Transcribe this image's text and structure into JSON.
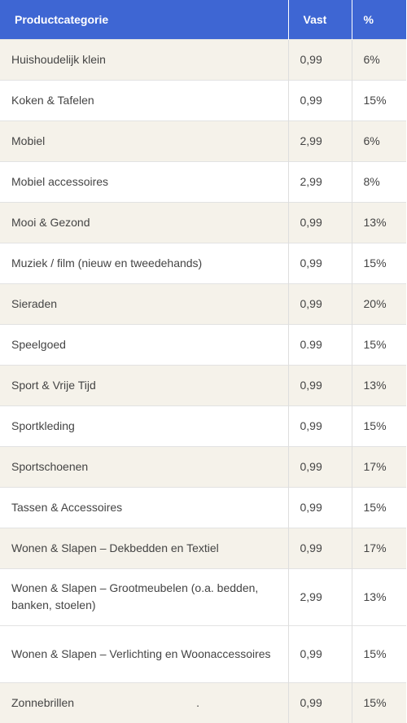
{
  "table": {
    "headers": {
      "category": "Productcategorie",
      "fixed": "Vast",
      "percent": "%"
    },
    "rows": [
      {
        "category": "Huishoudelijk klein",
        "fixed": "0,99",
        "percent": "6%"
      },
      {
        "category": "Koken & Tafelen",
        "fixed": "0,99",
        "percent": "15%"
      },
      {
        "category": "Mobiel",
        "fixed": "2,99",
        "percent": "6%"
      },
      {
        "category": "Mobiel accessoires",
        "fixed": "2,99",
        "percent": "8%"
      },
      {
        "category": "Mooi & Gezond",
        "fixed": "0,99",
        "percent": "13%"
      },
      {
        "category": "Muziek / film (nieuw en tweedehands)",
        "fixed": "0,99",
        "percent": "15%"
      },
      {
        "category": "Sieraden",
        "fixed": "0,99",
        "percent": "20%"
      },
      {
        "category": "Speelgoed",
        "fixed": "0.99",
        "percent": "15%"
      },
      {
        "category": "Sport & Vrije Tijd",
        "fixed": "0,99",
        "percent": "13%"
      },
      {
        "category": "Sportkleding",
        "fixed": "0,99",
        "percent": "15%"
      },
      {
        "category": "Sportschoenen",
        "fixed": "0,99",
        "percent": "17%"
      },
      {
        "category": "Tassen & Accessoires",
        "fixed": "0,99",
        "percent": "15%"
      },
      {
        "category": "Wonen & Slapen – Dekbedden en Textiel",
        "fixed": "0,99",
        "percent": "17%"
      },
      {
        "category": "Wonen & Slapen – Grootmeubelen (o.a. bedden, banken, stoelen)",
        "fixed": "2,99",
        "percent": "13%"
      },
      {
        "category": "Wonen & Slapen – Verlichting en Woonaccessoires",
        "fixed": "0,99",
        "percent": "15%"
      },
      {
        "category": "Zonnebrillen",
        "fixed": "0,99",
        "percent": "15%",
        "trailing_mark": "."
      }
    ]
  },
  "colors": {
    "header_background": "#3e66d3",
    "header_text": "#ffffff",
    "row_shaded": "#f5f2ea",
    "row_plain": "#ffffff",
    "cell_text": "#444444"
  }
}
